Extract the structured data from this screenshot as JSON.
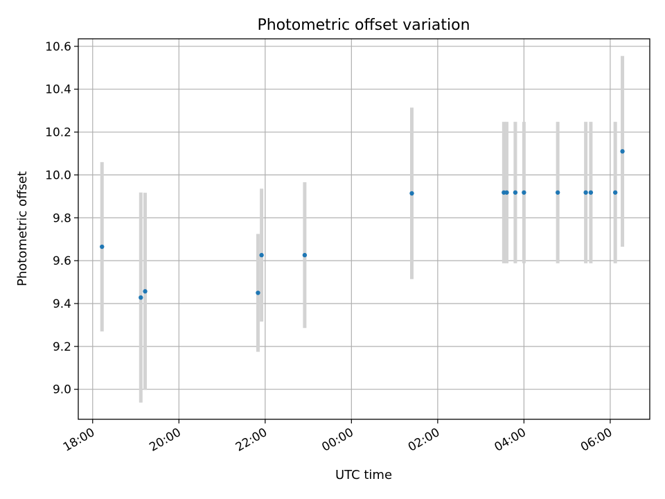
{
  "chart_data": {
    "type": "scatter",
    "title": "Photometric offset variation",
    "xlabel": "UTC time",
    "ylabel": "Photometric offset",
    "x_axis_type": "time",
    "xlim": [
      "17:40",
      "30:55"
    ],
    "ylim": [
      8.86,
      10.635
    ],
    "grid": true,
    "x_ticks": [
      {
        "value": "18:00",
        "label": "18:00"
      },
      {
        "value": "20:00",
        "label": "20:00"
      },
      {
        "value": "22:00",
        "label": "22:00"
      },
      {
        "value": "24:00",
        "label": "00:00"
      },
      {
        "value": "26:00",
        "label": "02:00"
      },
      {
        "value": "28:00",
        "label": "04:00"
      },
      {
        "value": "30:00",
        "label": "06:00"
      }
    ],
    "y_ticks": [
      {
        "value": 9.0,
        "label": "9.0"
      },
      {
        "value": 9.2,
        "label": "9.2"
      },
      {
        "value": 9.4,
        "label": "9.4"
      },
      {
        "value": 9.6,
        "label": "9.6"
      },
      {
        "value": 9.8,
        "label": "9.8"
      },
      {
        "value": 10.0,
        "label": "10.0"
      },
      {
        "value": 10.2,
        "label": "10.2"
      },
      {
        "value": 10.4,
        "label": "10.4"
      },
      {
        "value": 10.6,
        "label": "10.6"
      }
    ],
    "colors": {
      "point": "#1f77b4",
      "errorbar": "#d3d3d3",
      "grid": "#b0b0b0"
    },
    "points": [
      {
        "x": "18:13",
        "y": 9.665,
        "err": 0.395
      },
      {
        "x": "19:07",
        "y": 9.428,
        "err": 0.49
      },
      {
        "x": "19:13",
        "y": 9.457,
        "err": 0.46
      },
      {
        "x": "21:50",
        "y": 9.45,
        "err": 0.275
      },
      {
        "x": "21:55",
        "y": 9.626,
        "err": 0.31
      },
      {
        "x": "22:55",
        "y": 9.626,
        "err": 0.34
      },
      {
        "x": "25:24",
        "y": 9.914,
        "err": 0.4
      },
      {
        "x": "27:32",
        "y": 9.918,
        "err": 0.33
      },
      {
        "x": "27:36",
        "y": 9.918,
        "err": 0.33
      },
      {
        "x": "27:48",
        "y": 9.918,
        "err": 0.33
      },
      {
        "x": "28:00",
        "y": 9.918,
        "err": 0.33
      },
      {
        "x": "28:47",
        "y": 9.918,
        "err": 0.33
      },
      {
        "x": "29:26",
        "y": 9.918,
        "err": 0.33
      },
      {
        "x": "29:33",
        "y": 9.918,
        "err": 0.33
      },
      {
        "x": "30:07",
        "y": 9.918,
        "err": 0.33
      },
      {
        "x": "30:17",
        "y": 10.11,
        "err": 0.445
      }
    ]
  }
}
